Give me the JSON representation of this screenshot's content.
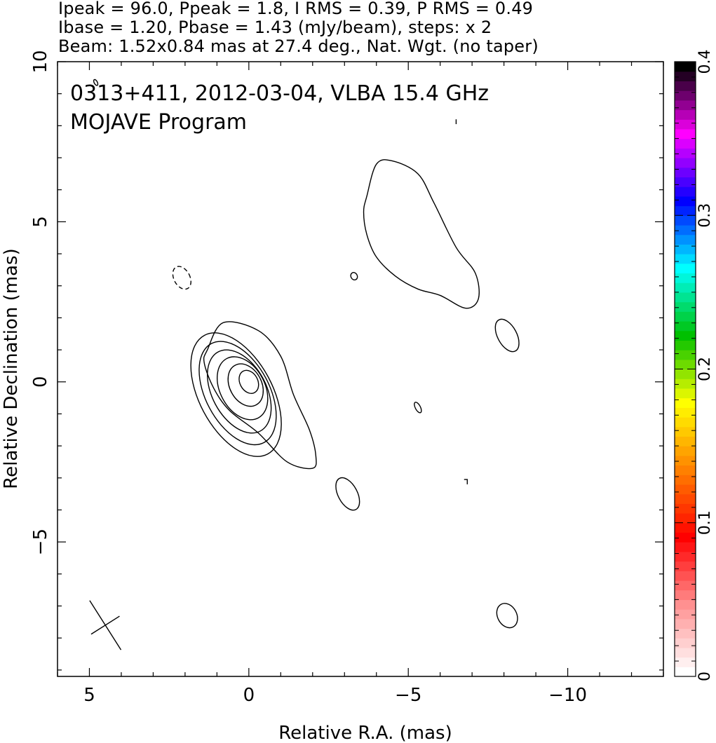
{
  "header": {
    "line1": "Ipeak = 96.0, Ppeak = 1.8, I RMS = 0.39, P RMS = 0.49",
    "line2": "Ibase = 1.20, Pbase = 1.43 (mJy/beam), steps: x 2",
    "line3": "Beam: 1.52x0.84 mas at 27.4 deg., Nat. Wgt. (no taper)"
  },
  "chart_data": {
    "type": "contour",
    "annotation": [
      "0313+411, 2012-03-04, VLBA 15.4 GHz",
      "MOJAVE Program"
    ],
    "xlabel": "Relative R.A. (mas)",
    "ylabel": "Relative Declination (mas)",
    "xlim": [
      6.0,
      -13.0
    ],
    "ylim": [
      -9.2,
      10.0
    ],
    "x_reversed": true,
    "xticks": [
      5,
      0,
      -5,
      -10
    ],
    "xtick_labels": [
      "5",
      "0",
      "−5",
      "−10"
    ],
    "yticks": [
      10,
      5,
      0,
      -5
    ],
    "ytick_labels": [
      "10",
      "5",
      "0",
      "−5"
    ],
    "colorbar": {
      "range": [
        0,
        0.4
      ],
      "ticks": [
        0,
        0.1,
        0.2,
        0.3,
        0.4
      ],
      "tick_labels": [
        "0",
        "0.1",
        "0.2",
        "0.3",
        "0.4"
      ],
      "colors": [
        "#ffffff",
        "#ff9090",
        "#ff0000",
        "#ff8000",
        "#ffff00",
        "#00c000",
        "#00ffff",
        "#0000ff",
        "#ff00ff",
        "#000000"
      ]
    },
    "beam": {
      "major_mas": 1.52,
      "minor_mas": 0.84,
      "pa_deg": 27.4,
      "center": [
        4.5,
        -7.6
      ]
    },
    "core_contours": [
      {
        "cx": 0.0,
        "cy": 0.0,
        "a": 0.28,
        "b": 0.38
      },
      {
        "cx": 0.1,
        "cy": -0.1,
        "a": 0.5,
        "b": 0.7
      },
      {
        "cx": 0.2,
        "cy": -0.2,
        "a": 0.7,
        "b": 1.05
      },
      {
        "cx": 0.3,
        "cy": -0.3,
        "a": 0.85,
        "b": 1.4
      },
      {
        "cx": 0.35,
        "cy": -0.35,
        "a": 1.0,
        "b": 1.75
      },
      {
        "cx": 0.4,
        "cy": -0.4,
        "a": 1.15,
        "b": 2.1
      }
    ],
    "outer_core_contour": [
      [
        1.3,
        1.0
      ],
      [
        0.8,
        1.85
      ],
      [
        -0.3,
        1.6
      ],
      [
        -1.0,
        0.8
      ],
      [
        -1.4,
        -0.4
      ],
      [
        -1.9,
        -1.5
      ],
      [
        -2.1,
        -2.3
      ],
      [
        -2.0,
        -2.7
      ],
      [
        -1.2,
        -2.5
      ],
      [
        -0.3,
        -1.6
      ],
      [
        0.6,
        -0.9
      ],
      [
        1.1,
        -0.2
      ],
      [
        1.4,
        0.6
      ]
    ],
    "jet_contour": [
      [
        -3.7,
        5.8
      ],
      [
        -4.0,
        6.8
      ],
      [
        -4.5,
        6.9
      ],
      [
        -5.3,
        6.5
      ],
      [
        -5.8,
        5.6
      ],
      [
        -6.5,
        4.2
      ],
      [
        -7.1,
        3.4
      ],
      [
        -7.2,
        2.6
      ],
      [
        -6.8,
        2.3
      ],
      [
        -6.0,
        2.7
      ],
      [
        -5.3,
        2.9
      ],
      [
        -4.6,
        3.3
      ],
      [
        -4.0,
        3.9
      ],
      [
        -3.7,
        4.6
      ],
      [
        -3.6,
        5.3
      ]
    ],
    "small_contours": [
      {
        "cx": -3.1,
        "cy": -3.5,
        "a": 0.3,
        "b": 0.55,
        "dashed": false
      },
      {
        "cx": -8.1,
        "cy": 1.45,
        "a": 0.3,
        "b": 0.55,
        "dashed": false
      },
      {
        "cx": -8.1,
        "cy": -7.3,
        "a": 0.3,
        "b": 0.4,
        "dashed": false
      },
      {
        "cx": -3.3,
        "cy": 3.3,
        "a": 0.1,
        "b": 0.12,
        "dashed": false
      },
      {
        "cx": -5.3,
        "cy": -0.8,
        "a": 0.08,
        "b": 0.18,
        "dashed": false
      },
      {
        "cx": 2.1,
        "cy": 3.25,
        "a": 0.25,
        "b": 0.38,
        "dashed": true
      },
      {
        "cx": 4.8,
        "cy": 9.35,
        "a": 0.05,
        "b": 0.1,
        "dashed": false
      }
    ]
  }
}
